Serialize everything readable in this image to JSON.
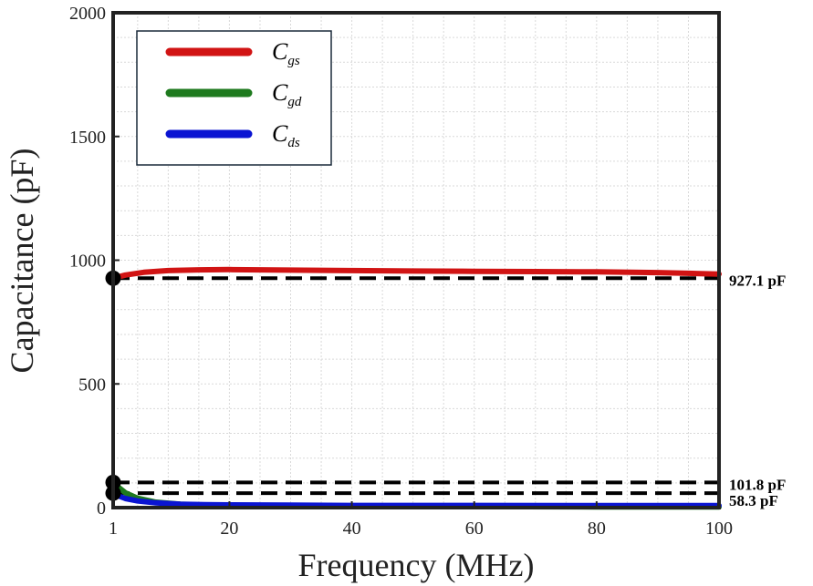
{
  "chart_data": {
    "type": "line",
    "xlabel": "Frequency (MHz)",
    "ylabel": "Capacitance (pF)",
    "xlim": [
      1,
      100
    ],
    "ylim": [
      0,
      2000
    ],
    "x_ticks": [
      1,
      20,
      40,
      60,
      80,
      100
    ],
    "y_ticks": [
      0,
      500,
      1000,
      1500,
      2000
    ],
    "grid": true,
    "legend_position": "top-left",
    "series": [
      {
        "name": "Cgs",
        "main": "C",
        "sub": "gs",
        "color": "#d11414",
        "x": [
          1,
          3,
          6,
          10,
          15,
          20,
          30,
          40,
          50,
          60,
          70,
          80,
          90,
          95,
          100
        ],
        "y": [
          927,
          940,
          951,
          958,
          961,
          962,
          960,
          958,
          956,
          955,
          954,
          953,
          950,
          947,
          944
        ]
      },
      {
        "name": "Cgd",
        "main": "C",
        "sub": "gd",
        "color": "#1e7a1e",
        "x": [
          1,
          2,
          3,
          5,
          8,
          12,
          16,
          20,
          30,
          40,
          60,
          80,
          100
        ],
        "y": [
          102,
          80,
          60,
          38,
          22,
          14,
          10,
          8,
          6,
          5,
          4,
          3,
          3
        ]
      },
      {
        "name": "Cds",
        "main": "C",
        "sub": "ds",
        "color": "#0a14d2",
        "x": [
          1,
          2,
          3,
          5,
          8,
          12,
          16,
          20,
          30,
          40,
          60,
          80,
          100
        ],
        "y": [
          58,
          46,
          37,
          27,
          19,
          14,
          12,
          11,
          10,
          9,
          9,
          8,
          8
        ]
      }
    ],
    "reference_lines": [
      {
        "value": 927.1,
        "label": "927.1 pF"
      },
      {
        "value": 101.8,
        "label": "101.8 pF"
      },
      {
        "value": 58.3,
        "label": "58.3 pF"
      }
    ],
    "markers": [
      {
        "x": 1,
        "y": 927.1
      },
      {
        "x": 1,
        "y": 101.8
      },
      {
        "x": 1,
        "y": 58.3
      }
    ]
  }
}
